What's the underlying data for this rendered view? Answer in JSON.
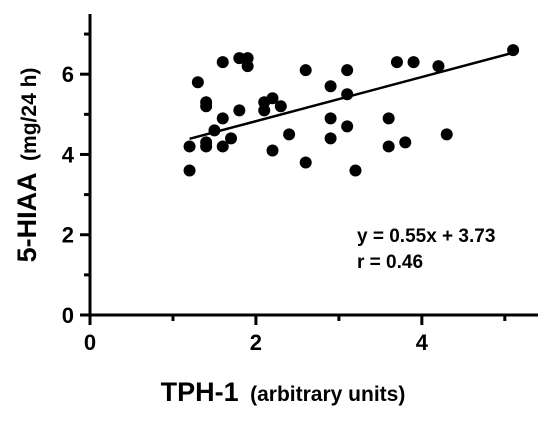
{
  "chart_data": {
    "type": "scatter",
    "xlabel_main": "TPH-1",
    "xlabel_sub": "(arbitrary units)",
    "ylabel_main": "5-HIAA",
    "ylabel_sub": "(mg/24 h)",
    "xlim": [
      0,
      5.4
    ],
    "ylim": [
      0,
      7.5
    ],
    "x_ticks": [
      0,
      2,
      4
    ],
    "y_ticks": [
      0,
      2,
      4,
      6
    ],
    "annotations": [
      "y = 0.55x + 3.73",
      "r = 0.46"
    ],
    "fit": {
      "slope": 0.55,
      "intercept": 3.73,
      "x_range": [
        1.2,
        5.1
      ]
    },
    "points": [
      {
        "x": 1.2,
        "y": 3.6
      },
      {
        "x": 1.2,
        "y": 4.2
      },
      {
        "x": 1.3,
        "y": 5.8
      },
      {
        "x": 1.4,
        "y": 5.3
      },
      {
        "x": 1.4,
        "y": 5.2
      },
      {
        "x": 1.4,
        "y": 4.3
      },
      {
        "x": 1.4,
        "y": 4.2
      },
      {
        "x": 1.5,
        "y": 4.6
      },
      {
        "x": 1.6,
        "y": 6.3
      },
      {
        "x": 1.6,
        "y": 4.9
      },
      {
        "x": 1.6,
        "y": 4.2
      },
      {
        "x": 1.7,
        "y": 4.4
      },
      {
        "x": 1.8,
        "y": 6.4
      },
      {
        "x": 1.8,
        "y": 5.1
      },
      {
        "x": 1.9,
        "y": 6.4
      },
      {
        "x": 1.9,
        "y": 6.2
      },
      {
        "x": 2.1,
        "y": 5.3
      },
      {
        "x": 2.1,
        "y": 5.1
      },
      {
        "x": 2.2,
        "y": 5.4
      },
      {
        "x": 2.2,
        "y": 4.1
      },
      {
        "x": 2.3,
        "y": 5.2
      },
      {
        "x": 2.4,
        "y": 4.5
      },
      {
        "x": 2.6,
        "y": 6.1
      },
      {
        "x": 2.6,
        "y": 3.8
      },
      {
        "x": 2.9,
        "y": 5.7
      },
      {
        "x": 2.9,
        "y": 4.9
      },
      {
        "x": 2.9,
        "y": 4.4
      },
      {
        "x": 3.1,
        "y": 6.1
      },
      {
        "x": 3.1,
        "y": 5.5
      },
      {
        "x": 3.1,
        "y": 4.7
      },
      {
        "x": 3.2,
        "y": 3.6
      },
      {
        "x": 3.6,
        "y": 4.9
      },
      {
        "x": 3.6,
        "y": 4.2
      },
      {
        "x": 3.7,
        "y": 6.3
      },
      {
        "x": 3.8,
        "y": 4.3
      },
      {
        "x": 3.9,
        "y": 6.3
      },
      {
        "x": 4.2,
        "y": 6.2
      },
      {
        "x": 4.3,
        "y": 4.5
      },
      {
        "x": 5.1,
        "y": 6.6
      }
    ]
  }
}
